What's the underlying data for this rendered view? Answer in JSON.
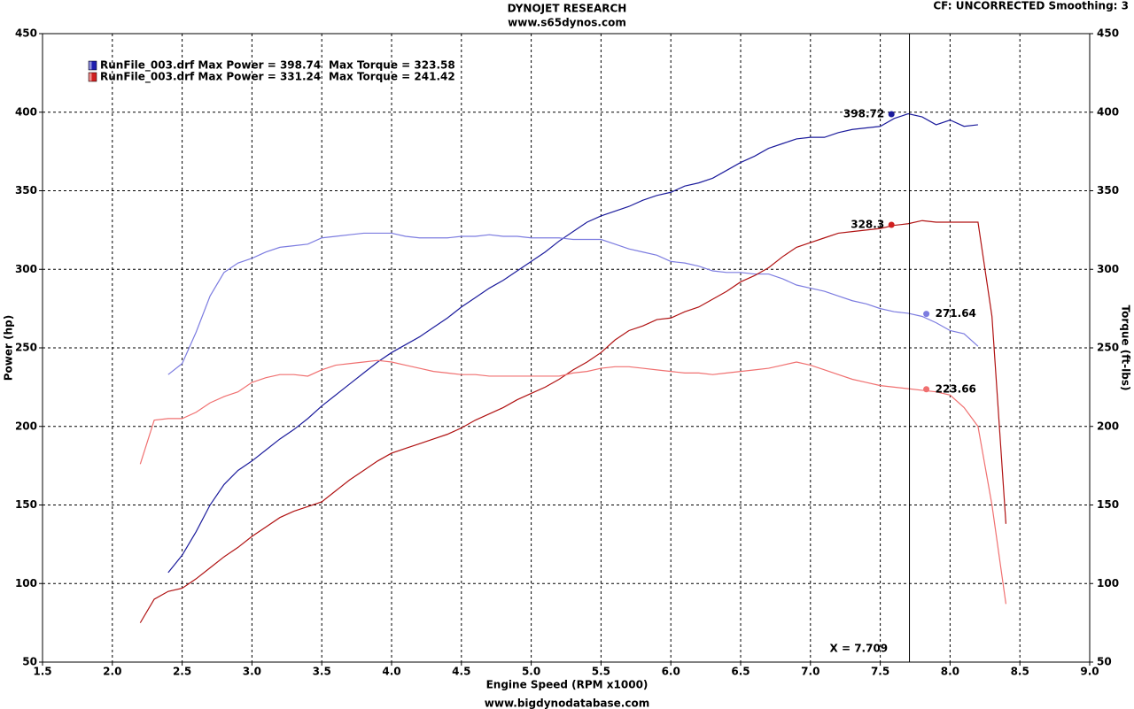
{
  "chart_data": {
    "type": "line",
    "title": "DYNOJET RESEARCH",
    "subtitle": "www.s65dynos.com",
    "corner_note": "CF: UNCORRECTED  Smoothing: 3",
    "footer": "www.bigdynodatabase.com",
    "xlabel": "Engine Speed (RPM x1000)",
    "ylabel": "Power (hp)",
    "y2label": "Torque (ft-lbs)",
    "grid": true,
    "xlim": [
      1.5,
      9.0
    ],
    "xticks": [
      1.5,
      {
        "value": 2,
        "label": "2.0"
      },
      2.5,
      {
        "value": 3,
        "label": "3.0"
      },
      3.5,
      {
        "value": 4,
        "label": "4.0"
      },
      4.5,
      {
        "value": 5,
        "label": "5.0"
      },
      5.5,
      {
        "value": 6,
        "label": "6.0"
      },
      6.5,
      {
        "value": 7,
        "label": "7.0"
      },
      7.5,
      {
        "value": 8,
        "label": "8.0"
      },
      8.5,
      {
        "value": 9,
        "label": "9.0"
      }
    ],
    "ylim": [
      50,
      450
    ],
    "yticks": [
      50,
      100,
      150,
      200,
      250,
      300,
      350,
      400,
      450
    ],
    "y2lim": [
      50,
      450
    ],
    "y2ticks": [
      50,
      100,
      150,
      200,
      250,
      300,
      350,
      400,
      450
    ],
    "legend": [
      {
        "color": "#2020b0",
        "power_text": "RunFile_003.drf Max Power = 398.74",
        "torque_text": "Max Torque = 323.58"
      },
      {
        "color": "#d02020",
        "power_text": "RunFile_003.drf Max Power = 331.24",
        "torque_text": "Max Torque = 241.42"
      }
    ],
    "x": [
      2.2,
      2.3,
      2.4,
      2.5,
      2.6,
      2.7,
      2.8,
      2.9,
      3.0,
      3.1,
      3.2,
      3.3,
      3.4,
      3.5,
      3.6,
      3.7,
      3.8,
      3.9,
      4.0,
      4.1,
      4.2,
      4.3,
      4.4,
      4.5,
      4.6,
      4.7,
      4.8,
      4.9,
      5.0,
      5.1,
      5.2,
      5.3,
      5.4,
      5.5,
      5.6,
      5.7,
      5.8,
      5.9,
      6.0,
      6.1,
      6.2,
      6.3,
      6.4,
      6.5,
      6.6,
      6.7,
      6.8,
      6.9,
      7.0,
      7.1,
      7.2,
      7.3,
      7.4,
      7.5,
      7.6,
      7.7,
      7.8,
      7.9,
      8.0,
      8.1,
      8.2,
      8.3,
      8.4
    ],
    "series": [
      {
        "color": "#1c1c9c",
        "axis": "y",
        "values": [
          null,
          null,
          107,
          118,
          133,
          150,
          163,
          172,
          178,
          185,
          192,
          198,
          205,
          213,
          220,
          227,
          234,
          241,
          247,
          252,
          257,
          263,
          269,
          276,
          282,
          288,
          293,
          299,
          305,
          311,
          318,
          324,
          330,
          334,
          337,
          340,
          344,
          347,
          349,
          353,
          355,
          358,
          363,
          368,
          372,
          377,
          380,
          383,
          384,
          384,
          387,
          389,
          390,
          391,
          396,
          399,
          397,
          392,
          395,
          391,
          392,
          null,
          null
        ]
      },
      {
        "color": "#7c7ce0",
        "axis": "y2",
        "values": [
          null,
          null,
          233,
          240,
          260,
          283,
          298,
          304,
          307,
          311,
          314,
          315,
          316,
          320,
          321,
          322,
          323,
          323,
          323,
          321,
          320,
          320,
          320,
          321,
          321,
          322,
          321,
          321,
          320,
          320,
          320,
          319,
          319,
          319,
          316,
          313,
          311,
          309,
          305,
          304,
          302,
          299,
          298,
          298,
          297,
          297,
          294,
          290,
          288,
          286,
          283,
          280,
          278,
          275,
          273,
          272,
          270,
          266,
          261,
          259,
          251,
          null,
          null
        ]
      },
      {
        "color": "#b01212",
        "axis": "y",
        "values": [
          75,
          90,
          95,
          97,
          103,
          110,
          117,
          123,
          130,
          136,
          142,
          146,
          149,
          152,
          159,
          166,
          172,
          178,
          183,
          186,
          189,
          192,
          195,
          199,
          204,
          208,
          212,
          217,
          221,
          225,
          230,
          236,
          241,
          247,
          255,
          261,
          264,
          268,
          269,
          273,
          276,
          281,
          286,
          292,
          296,
          301,
          308,
          314,
          317,
          320,
          323,
          324,
          325,
          326,
          328,
          329,
          331,
          330,
          330,
          330,
          330,
          270,
          138
        ]
      },
      {
        "color": "#f07070",
        "axis": "y2",
        "values": [
          176,
          204,
          205,
          205,
          209,
          215,
          219,
          222,
          228,
          231,
          233,
          233,
          232,
          236,
          239,
          240,
          241,
          242,
          241,
          239,
          237,
          235,
          234,
          233,
          233,
          232,
          232,
          232,
          232,
          232,
          232,
          234,
          235,
          237,
          238,
          238,
          237,
          236,
          235,
          234,
          234,
          233,
          234,
          235,
          236,
          237,
          239,
          241,
          239,
          236,
          233,
          230,
          228,
          226,
          225,
          224,
          223,
          222,
          220,
          212,
          200,
          150,
          87
        ]
      }
    ],
    "annotations": [
      {
        "x": 7.58,
        "y": 398.72,
        "color": "#1c1c9c",
        "side": "left"
      },
      {
        "x": 7.58,
        "y": 328.3,
        "color": "#d02020",
        "side": "left"
      },
      {
        "x": 7.83,
        "y": 271.64,
        "color": "#7c7ce0",
        "side": "right"
      },
      {
        "x": 7.83,
        "y": 223.66,
        "color": "#f07070",
        "side": "right"
      }
    ],
    "cursor": {
      "value": 7.709,
      "label": "X = 7.709"
    }
  }
}
